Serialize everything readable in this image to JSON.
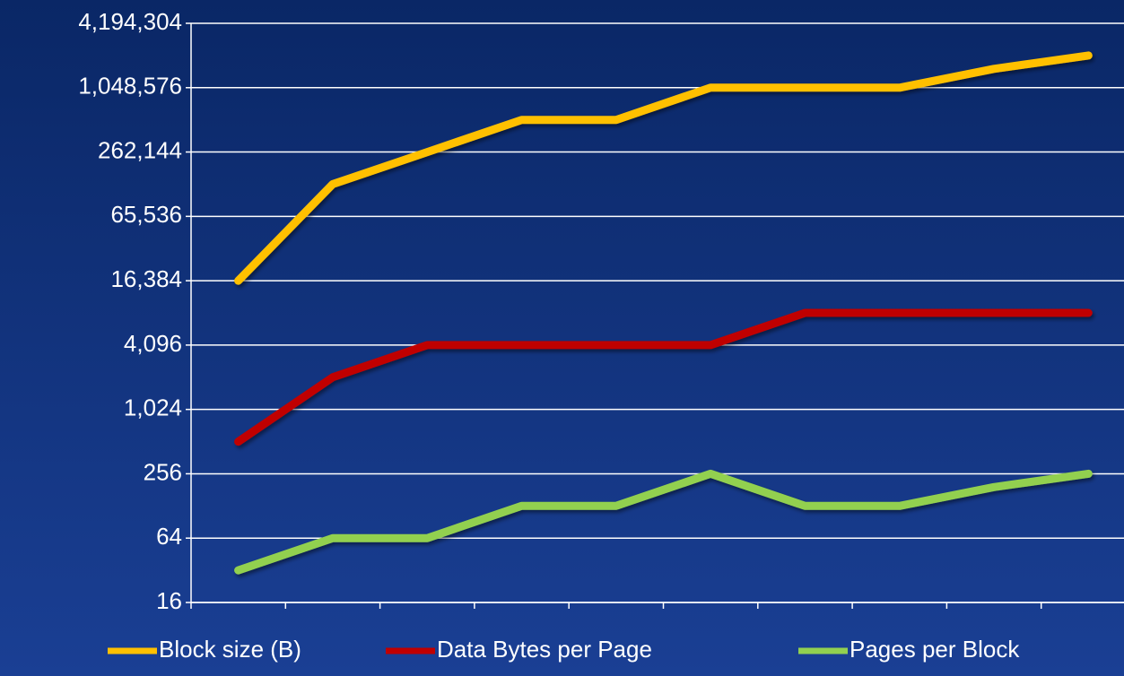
{
  "chart_data": {
    "type": "line",
    "categories": [
      null,
      null,
      null,
      null,
      null,
      null,
      null,
      null,
      null,
      null
    ],
    "series": [
      {
        "name": "Block size (B)",
        "color": "#ffc000",
        "values": [
          16384,
          131072,
          262144,
          524288,
          524288,
          1048576,
          1048576,
          1048576,
          1572864,
          2097152
        ]
      },
      {
        "name": "Data Bytes per Page",
        "color": "#c00000",
        "values": [
          512,
          2048,
          4096,
          4096,
          4096,
          4096,
          8192,
          8192,
          8192,
          8192
        ]
      },
      {
        "name": "Pages per Block",
        "color": "#92d050",
        "values": [
          32,
          64,
          64,
          128,
          128,
          256,
          128,
          128,
          192,
          256
        ]
      }
    ],
    "ylim": [
      16,
      4194304
    ],
    "yticks": [
      16,
      64,
      256,
      {
        "value": 1024,
        "label": "1,024"
      },
      {
        "value": 4096,
        "label": "4,096"
      },
      {
        "value": 16384,
        "label": "16,384"
      },
      {
        "value": 65536,
        "label": "65,536"
      },
      {
        "value": 262144,
        "label": "262,144"
      },
      {
        "value": 1048576,
        "label": "1,048,576"
      },
      {
        "value": 4194304,
        "label": "4,194,304"
      }
    ],
    "log_scale": true,
    "log_base": 2,
    "grid": true,
    "legend": "bottom"
  }
}
